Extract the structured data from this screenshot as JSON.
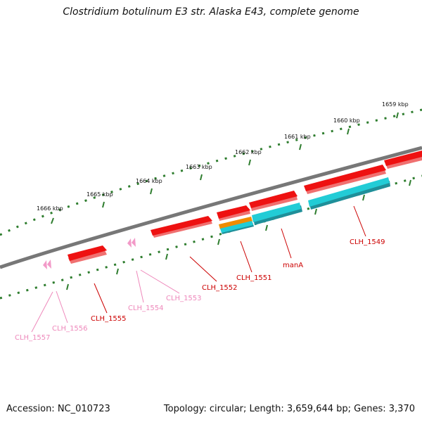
{
  "title": "Clostridium botulinum E3 str. Alaska E43, complete genome",
  "accession": "Accession: NC_010723",
  "summary": "Topology: circular; Length: 3,659,644 bp; Genes: 3,370",
  "colors": {
    "backbone": "#777777",
    "ticks": "#2e7d2e",
    "gene_red": "#ee1111",
    "gene_cyan": "#22ccd6",
    "gene_orange": "#f08c00",
    "gene_pink": "#f29ac8",
    "label_red": "#cc0000",
    "label_pink": "#ee88bb"
  },
  "scale_labels": [
    "1666 kbp",
    "1665 kbp",
    "1664 kbp",
    "1663 kbp",
    "1662 kbp",
    "1661 kbp",
    "1660 kbp",
    "1659 kbp"
  ],
  "genes": [
    {
      "label": "CLH_1549",
      "type": "red"
    },
    {
      "label": "CLH_1551",
      "type": "red"
    },
    {
      "label": "manA",
      "type": "red"
    },
    {
      "label": "CLH_1552",
      "type": "red"
    },
    {
      "label": "CLH_1553",
      "type": "pink"
    },
    {
      "label": "CLH_1554",
      "type": "pink"
    },
    {
      "label": "CLH_1555",
      "type": "red"
    },
    {
      "label": "CLH_1556",
      "type": "pink"
    },
    {
      "label": "CLH_1557",
      "type": "pink"
    }
  ]
}
